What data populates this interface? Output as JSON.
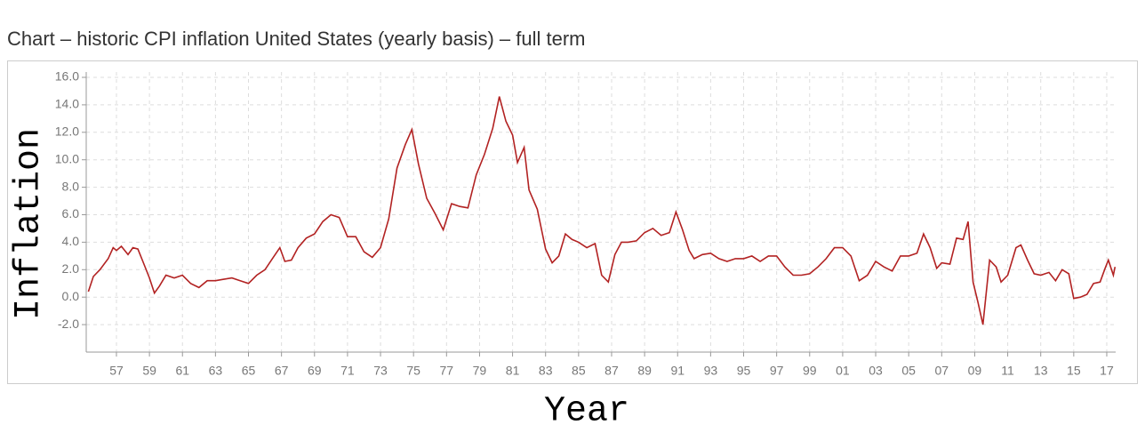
{
  "chart_data": {
    "type": "line",
    "title": "Chart – historic CPI inflation United States (yearly basis) – full term",
    "x_label": "Year",
    "y_label": "Inflation",
    "color": "#b22222",
    "grid": true,
    "xlim": [
      1955.17,
      2017.54
    ],
    "ylim": [
      -4,
      16
    ],
    "yticks": [
      {
        "value": -2,
        "label": "-2.0"
      },
      {
        "value": 0,
        "label": "0.0"
      },
      {
        "value": 2,
        "label": "2.0"
      },
      {
        "value": 4,
        "label": "4.0"
      },
      {
        "value": 6,
        "label": "6.0"
      },
      {
        "value": 8,
        "label": "8.0"
      },
      {
        "value": 10,
        "label": "10.0"
      },
      {
        "value": 12,
        "label": "12.0"
      },
      {
        "value": 14,
        "label": "14.0"
      },
      {
        "value": 16,
        "label": "16.0"
      }
    ],
    "xticks": [
      {
        "value": 1957,
        "label": "57"
      },
      {
        "value": 1959,
        "label": "59"
      },
      {
        "value": 1961,
        "label": "61"
      },
      {
        "value": 1963,
        "label": "63"
      },
      {
        "value": 1965,
        "label": "65"
      },
      {
        "value": 1967,
        "label": "67"
      },
      {
        "value": 1969,
        "label": "69"
      },
      {
        "value": 1971,
        "label": "71"
      },
      {
        "value": 1973,
        "label": "73"
      },
      {
        "value": 1975,
        "label": "75"
      },
      {
        "value": 1977,
        "label": "77"
      },
      {
        "value": 1979,
        "label": "79"
      },
      {
        "value": 1981,
        "label": "81"
      },
      {
        "value": 1983,
        "label": "83"
      },
      {
        "value": 1985,
        "label": "85"
      },
      {
        "value": 1987,
        "label": "87"
      },
      {
        "value": 1989,
        "label": "89"
      },
      {
        "value": 1991,
        "label": "91"
      },
      {
        "value": 1993,
        "label": "93"
      },
      {
        "value": 1995,
        "label": "95"
      },
      {
        "value": 1997,
        "label": "97"
      },
      {
        "value": 1999,
        "label": "99"
      },
      {
        "value": 2001,
        "label": "01"
      },
      {
        "value": 2003,
        "label": "03"
      },
      {
        "value": 2005,
        "label": "05"
      },
      {
        "value": 2007,
        "label": "07"
      },
      {
        "value": 2009,
        "label": "09"
      },
      {
        "value": 2011,
        "label": "11"
      },
      {
        "value": 2013,
        "label": "13"
      },
      {
        "value": 2015,
        "label": "15"
      },
      {
        "value": 2017,
        "label": "17"
      }
    ],
    "x": [
      1955.3,
      1955.6,
      1956.0,
      1956.5,
      1956.8,
      1957.0,
      1957.3,
      1957.7,
      1958.0,
      1958.3,
      1958.6,
      1959.0,
      1959.3,
      1959.6,
      1960.0,
      1960.5,
      1961.0,
      1961.5,
      1962.0,
      1962.5,
      1963.0,
      1963.5,
      1964.0,
      1964.5,
      1965.0,
      1965.5,
      1966.0,
      1966.5,
      1966.9,
      1967.2,
      1967.6,
      1968.0,
      1968.5,
      1969.0,
      1969.5,
      1970.0,
      1970.5,
      1971.0,
      1971.5,
      1972.0,
      1972.5,
      1973.0,
      1973.5,
      1974.0,
      1974.5,
      1974.9,
      1975.3,
      1975.8,
      1976.3,
      1976.8,
      1977.3,
      1977.8,
      1978.3,
      1978.8,
      1979.3,
      1979.8,
      1980.2,
      1980.6,
      1981.0,
      1981.3,
      1981.7,
      1982.0,
      1982.5,
      1983.0,
      1983.4,
      1983.8,
      1984.2,
      1984.6,
      1985.0,
      1985.5,
      1986.0,
      1986.4,
      1986.8,
      1987.2,
      1987.6,
      1988.0,
      1988.5,
      1989.0,
      1989.5,
      1990.0,
      1990.5,
      1990.9,
      1991.3,
      1991.7,
      1992.0,
      1992.5,
      1993.0,
      1993.5,
      1994.0,
      1994.5,
      1995.0,
      1995.5,
      1996.0,
      1996.5,
      1997.0,
      1997.5,
      1998.0,
      1998.5,
      1999.0,
      1999.5,
      2000.0,
      2000.5,
      2001.0,
      2001.5,
      2002.0,
      2002.5,
      2003.0,
      2003.5,
      2004.0,
      2004.5,
      2005.0,
      2005.5,
      2005.9,
      2006.3,
      2006.7,
      2007.0,
      2007.5,
      2007.9,
      2008.3,
      2008.6,
      2008.9,
      2009.2,
      2009.5,
      2009.9,
      2010.3,
      2010.6,
      2011.0,
      2011.5,
      2011.8,
      2012.2,
      2012.6,
      2013.0,
      2013.5,
      2013.9,
      2014.3,
      2014.7,
      2015.0,
      2015.4,
      2015.8,
      2016.2,
      2016.6,
      2016.9,
      2017.1,
      2017.4,
      2017.5
    ],
    "values": [
      0.4,
      1.5,
      2.0,
      2.8,
      3.6,
      3.4,
      3.7,
      3.1,
      3.6,
      3.5,
      2.6,
      1.4,
      0.3,
      0.8,
      1.6,
      1.4,
      1.6,
      1.0,
      0.7,
      1.2,
      1.2,
      1.3,
      1.4,
      1.2,
      1.0,
      1.6,
      2.0,
      2.9,
      3.6,
      2.6,
      2.7,
      3.6,
      4.3,
      4.6,
      5.5,
      6.0,
      5.8,
      4.4,
      4.4,
      3.3,
      2.9,
      3.6,
      5.7,
      9.4,
      11.1,
      12.2,
      9.7,
      7.2,
      6.1,
      4.9,
      6.8,
      6.6,
      6.5,
      8.9,
      10.4,
      12.3,
      14.6,
      12.8,
      11.8,
      9.8,
      10.9,
      7.8,
      6.4,
      3.5,
      2.5,
      3.0,
      4.6,
      4.2,
      4.0,
      3.6,
      3.9,
      1.6,
      1.1,
      3.1,
      4.0,
      4.0,
      4.1,
      4.7,
      5.0,
      4.5,
      4.7,
      6.2,
      4.9,
      3.4,
      2.8,
      3.1,
      3.2,
      2.8,
      2.6,
      2.8,
      2.8,
      3.0,
      2.6,
      3.0,
      3.0,
      2.2,
      1.6,
      1.6,
      1.7,
      2.2,
      2.8,
      3.6,
      3.6,
      3.0,
      1.2,
      1.6,
      2.6,
      2.2,
      1.9,
      3.0,
      3.0,
      3.2,
      4.6,
      3.6,
      2.1,
      2.5,
      2.4,
      4.3,
      4.2,
      5.5,
      1.1,
      -0.4,
      -2.0,
      2.7,
      2.2,
      1.1,
      1.6,
      3.6,
      3.8,
      2.7,
      1.7,
      1.6,
      1.8,
      1.2,
      2.0,
      1.7,
      -0.1,
      0.0,
      0.2,
      1.0,
      1.1,
      2.1,
      2.7,
      1.6,
      2.2
    ]
  }
}
